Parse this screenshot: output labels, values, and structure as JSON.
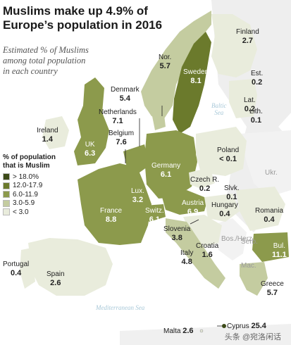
{
  "title": {
    "line1": "Muslims make up 4.9% of",
    "line2": "Europe’s population in 2016"
  },
  "subtitle": {
    "line1": "Estimated % of Muslims",
    "line2": "among total population",
    "line3": "in each country"
  },
  "legend": {
    "title_line1": "% of population",
    "title_line2": "that is Muslim",
    "items": [
      {
        "label": "> 18.0%",
        "color": "#3c4a18"
      },
      {
        "label": "12.0-17.9",
        "color": "#6b7a2c"
      },
      {
        "label": "6.0-11.9",
        "color": "#8c9a4c"
      },
      {
        "label": "3.0-5.9",
        "color": "#c4cca0"
      },
      {
        "label": "< 3.0",
        "color": "#e9ecdc"
      }
    ]
  },
  "countries": [
    {
      "name": "Finland",
      "value": "2.7"
    },
    {
      "name": "Nor.",
      "value": "5.7"
    },
    {
      "name": "Sweden",
      "value": "8.1"
    },
    {
      "name": "Est.",
      "value": "0.2"
    },
    {
      "name": "Lat.",
      "value": "0.2"
    },
    {
      "name": "Lith.",
      "value": "0.1"
    },
    {
      "name": "Denmark",
      "value": "5.4"
    },
    {
      "name": "Netherlands",
      "value": "7.1"
    },
    {
      "name": "Ireland",
      "value": "1.4"
    },
    {
      "name": "UK",
      "value": "6.3"
    },
    {
      "name": "Belgium",
      "value": "7.6"
    },
    {
      "name": "Germany",
      "value": "6.1"
    },
    {
      "name": "Poland",
      "value": "< 0.1"
    },
    {
      "name": "Czech R.",
      "value": "0.2"
    },
    {
      "name": "Slvk.",
      "value": "0.1"
    },
    {
      "name": "Lux.",
      "value": "3.2"
    },
    {
      "name": "France",
      "value": "8.8"
    },
    {
      "name": "Switz.",
      "value": "6.1"
    },
    {
      "name": "Austria",
      "value": "6.9"
    },
    {
      "name": "Hungary",
      "value": "0.4"
    },
    {
      "name": "Romania",
      "value": "0.4"
    },
    {
      "name": "Slovenia",
      "value": "3.8"
    },
    {
      "name": "Croatia",
      "value": "1.6"
    },
    {
      "name": "Italy",
      "value": "4.8"
    },
    {
      "name": "Bul.",
      "value": "11.1"
    },
    {
      "name": "Portugal",
      "value": "0.4"
    },
    {
      "name": "Spain",
      "value": "2.6"
    },
    {
      "name": "Greece",
      "value": "5.7"
    },
    {
      "name": "Cyprus",
      "value": "25.4"
    },
    {
      "name": "Malta",
      "value": "2.6"
    }
  ],
  "unlabeled_regions": [
    "Ukr.",
    "Bos./Herz.",
    "Serb.",
    "Mac."
  ],
  "seas": {
    "baltic_line1": "Baltic",
    "baltic_line2": "Sea",
    "mediterranean": "Mediterranean Sea"
  },
  "watermark": "头条 @宛洛闲话"
}
